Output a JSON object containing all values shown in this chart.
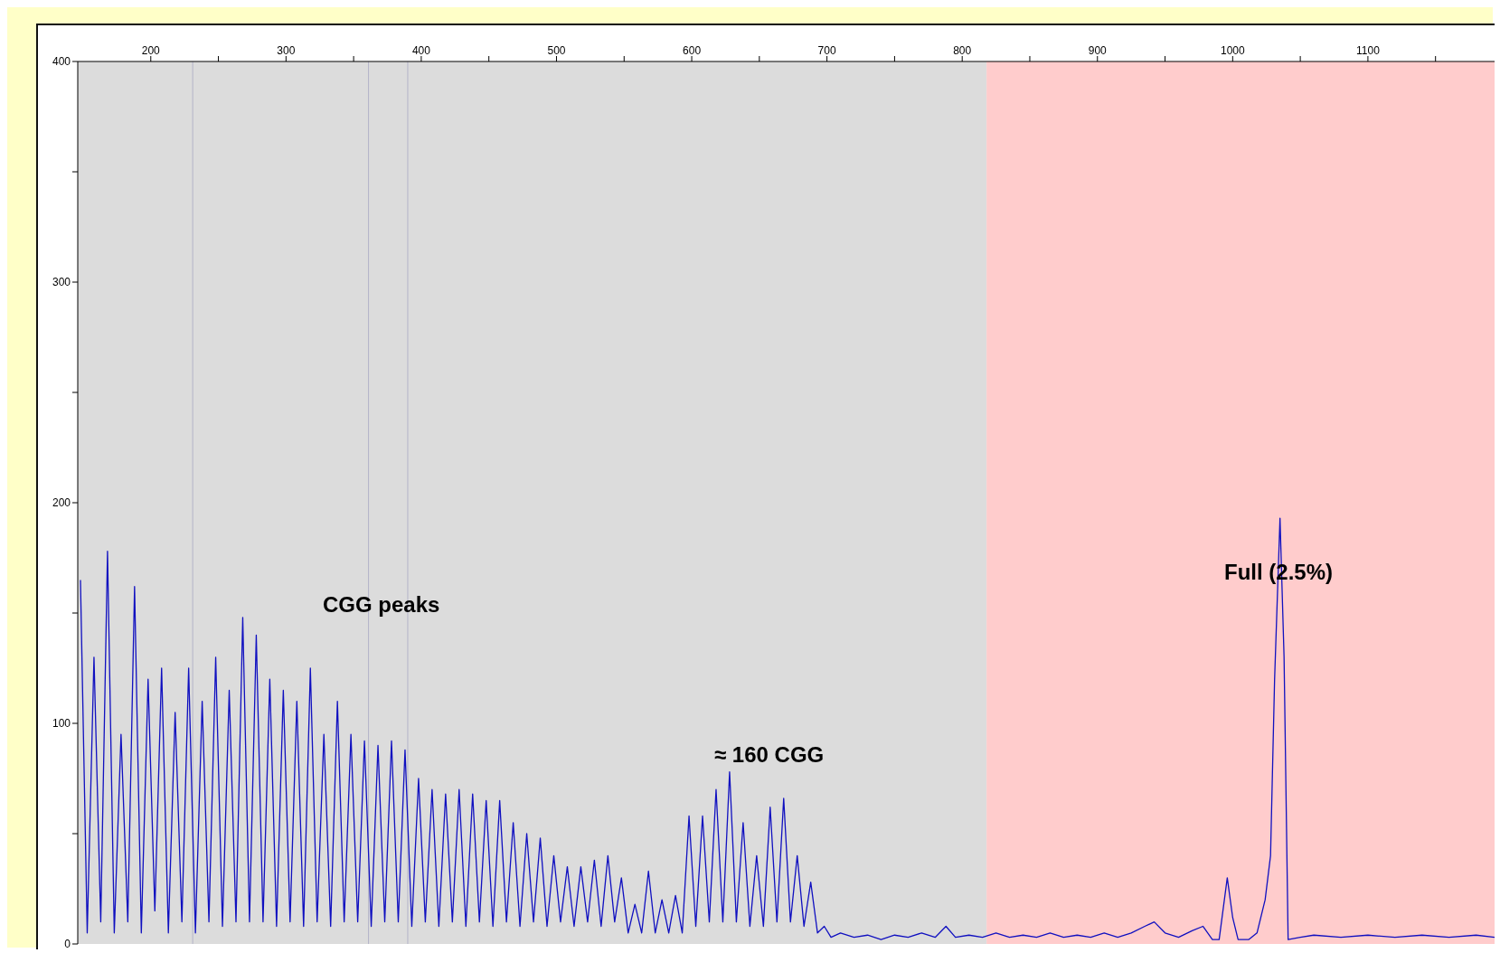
{
  "chart_data": {
    "type": "line",
    "line_style": "solid",
    "marker": "none",
    "xlim": [
      146,
      1195
    ],
    "xticks": [
      200,
      {
        "value": 250,
        "label": null
      },
      300,
      {
        "value": 350,
        "label": null
      },
      400,
      {
        "value": 450,
        "label": null
      },
      500,
      {
        "value": 550,
        "label": null
      },
      600,
      {
        "value": 650,
        "label": null
      },
      700,
      {
        "value": 750,
        "label": null
      },
      800,
      {
        "value": 850,
        "label": null
      },
      900,
      {
        "value": 950,
        "label": null
      },
      1000,
      {
        "value": 1050,
        "label": null
      },
      1100,
      {
        "value": 1150,
        "label": null
      }
    ],
    "ylim": [
      0,
      400
    ],
    "yticks": [
      0,
      {
        "value": 50,
        "label": null
      },
      100,
      {
        "value": 150,
        "label": null
      },
      200,
      {
        "value": 250,
        "label": null
      },
      300,
      {
        "value": 350,
        "label": null
      },
      400
    ],
    "bands": [
      {
        "axis": "x",
        "from": 146,
        "to": 818,
        "color": "#dcdcdc"
      },
      {
        "axis": "x",
        "from": 818,
        "to": 1195,
        "color": "#ffcccc"
      }
    ],
    "ref_lines": [
      {
        "axis": "x",
        "value": 231,
        "color": "#b4b4c8"
      },
      {
        "axis": "x",
        "value": 361,
        "color": "#b4b4c8"
      },
      {
        "axis": "x",
        "value": 390,
        "color": "#b4b4c8"
      }
    ],
    "annotations": [
      "CGG peaks",
      "≈ 160 CGG",
      "Full (2.5%)"
    ],
    "series": [
      {
        "color": "#1010c0",
        "x": [
          148,
          153,
          158,
          163,
          168,
          173,
          178,
          183,
          188,
          193,
          198,
          203,
          208,
          213,
          218,
          223,
          228,
          233,
          238,
          243,
          248,
          253,
          258,
          263,
          268,
          273,
          278,
          283,
          288,
          293,
          298,
          303,
          308,
          313,
          318,
          323,
          328,
          333,
          338,
          343,
          348,
          353,
          358,
          363,
          368,
          373,
          378,
          383,
          388,
          393,
          398,
          403,
          408,
          413,
          418,
          423,
          428,
          433,
          438,
          443,
          448,
          453,
          458,
          463,
          468,
          473,
          478,
          483,
          488,
          493,
          498,
          503,
          508,
          513,
          518,
          523,
          528,
          533,
          538,
          543,
          548,
          553,
          558,
          563,
          568,
          573,
          578,
          583,
          588,
          593,
          598,
          603,
          608,
          613,
          618,
          623,
          628,
          633,
          638,
          643,
          648,
          653,
          658,
          663,
          668,
          673,
          678,
          683,
          688,
          693,
          698,
          703,
          710,
          720,
          730,
          740,
          750,
          760,
          770,
          780,
          788,
          795,
          805,
          815,
          825,
          835,
          845,
          855,
          865,
          875,
          885,
          895,
          905,
          915,
          925,
          935,
          942,
          950,
          960,
          970,
          978,
          985,
          990,
          996,
          1000,
          1004,
          1012,
          1018,
          1024,
          1028,
          1031,
          1035,
          1038,
          1041,
          1050,
          1060,
          1080,
          1100,
          1120,
          1140,
          1160,
          1180,
          1194
        ],
        "values": [
          165,
          5,
          130,
          10,
          178,
          5,
          95,
          10,
          162,
          5,
          120,
          15,
          125,
          5,
          105,
          10,
          125,
          5,
          110,
          10,
          130,
          8,
          115,
          10,
          148,
          10,
          140,
          10,
          120,
          8,
          115,
          10,
          110,
          8,
          125,
          10,
          95,
          8,
          110,
          10,
          95,
          10,
          92,
          8,
          90,
          10,
          92,
          10,
          88,
          8,
          75,
          10,
          70,
          8,
          68,
          10,
          70,
          8,
          68,
          10,
          65,
          8,
          65,
          10,
          55,
          8,
          50,
          10,
          48,
          8,
          40,
          10,
          35,
          8,
          35,
          10,
          38,
          8,
          40,
          10,
          30,
          5,
          18,
          5,
          33,
          5,
          20,
          5,
          22,
          5,
          58,
          8,
          58,
          10,
          70,
          10,
          78,
          10,
          55,
          8,
          40,
          8,
          62,
          10,
          66,
          10,
          40,
          8,
          28,
          5,
          8,
          3,
          5,
          3,
          4,
          2,
          4,
          3,
          5,
          3,
          8,
          3,
          4,
          3,
          5,
          3,
          4,
          3,
          5,
          3,
          4,
          3,
          5,
          3,
          5,
          8,
          10,
          5,
          3,
          6,
          8,
          2,
          2,
          30,
          12,
          2,
          2,
          5,
          20,
          40,
          120,
          193,
          130,
          2,
          3,
          4,
          3,
          4,
          3,
          4,
          3,
          4,
          3
        ]
      }
    ]
  }
}
